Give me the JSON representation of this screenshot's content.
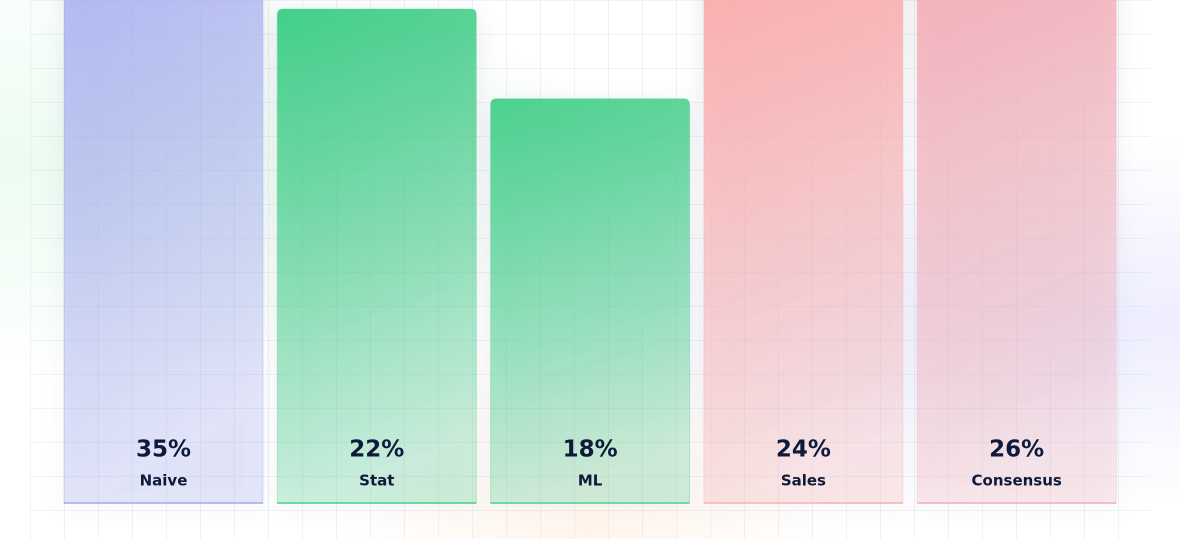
{
  "chart_data": {
    "type": "bar",
    "categories": [
      "Naive",
      "Stat",
      "ML",
      "Sales",
      "Consensus"
    ],
    "values": [
      35,
      22,
      18,
      24,
      26
    ],
    "value_labels": [
      "35%",
      "22%",
      "18%",
      "24%",
      "26%"
    ],
    "colors": [
      "#9ea8f2",
      "#42cf89",
      "#4bd18f",
      "#fbadae",
      "#f4adb7"
    ],
    "ylim": [
      0,
      22.4
    ]
  }
}
